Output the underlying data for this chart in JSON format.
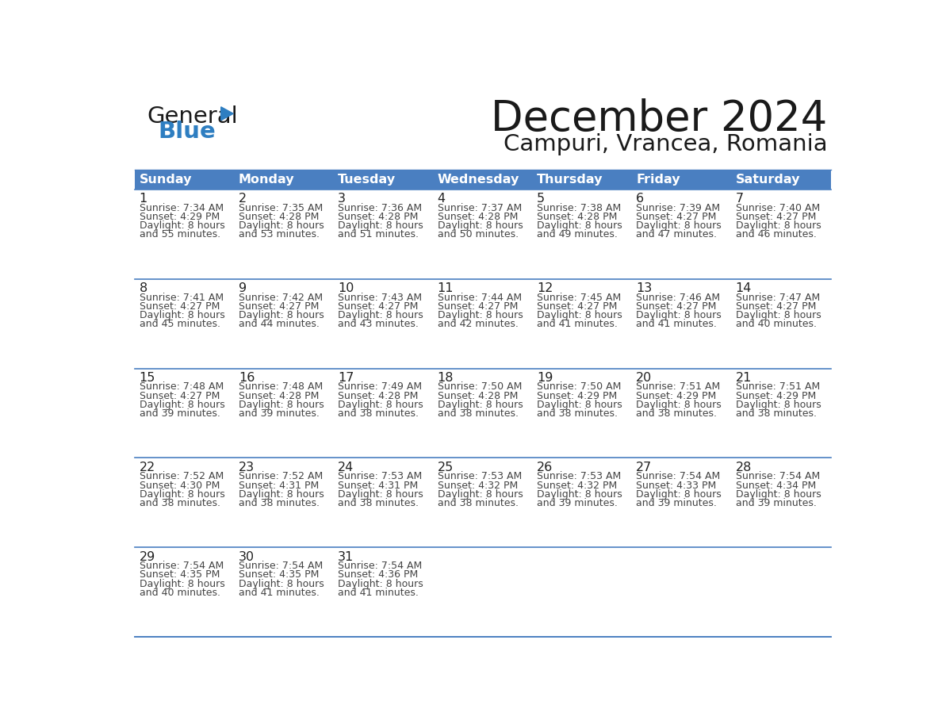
{
  "title": "December 2024",
  "subtitle": "Campuri, Vrancea, Romania",
  "header_bg": "#4a7fc1",
  "header_text": "#ffffff",
  "header_days": [
    "Sunday",
    "Monday",
    "Tuesday",
    "Wednesday",
    "Thursday",
    "Friday",
    "Saturday"
  ],
  "cell_border": "#4a7fc1",
  "day_number_color": "#222222",
  "cell_text_color": "#444444",
  "bg_color": "#ffffff",
  "calendar": [
    [
      {
        "day": "1",
        "sunrise": "7:34 AM",
        "sunset": "4:29 PM",
        "daylight": "8 hours",
        "daylight2": "and 55 minutes."
      },
      {
        "day": "2",
        "sunrise": "7:35 AM",
        "sunset": "4:28 PM",
        "daylight": "8 hours",
        "daylight2": "and 53 minutes."
      },
      {
        "day": "3",
        "sunrise": "7:36 AM",
        "sunset": "4:28 PM",
        "daylight": "8 hours",
        "daylight2": "and 51 minutes."
      },
      {
        "day": "4",
        "sunrise": "7:37 AM",
        "sunset": "4:28 PM",
        "daylight": "8 hours",
        "daylight2": "and 50 minutes."
      },
      {
        "day": "5",
        "sunrise": "7:38 AM",
        "sunset": "4:28 PM",
        "daylight": "8 hours",
        "daylight2": "and 49 minutes."
      },
      {
        "day": "6",
        "sunrise": "7:39 AM",
        "sunset": "4:27 PM",
        "daylight": "8 hours",
        "daylight2": "and 47 minutes."
      },
      {
        "day": "7",
        "sunrise": "7:40 AM",
        "sunset": "4:27 PM",
        "daylight": "8 hours",
        "daylight2": "and 46 minutes."
      }
    ],
    [
      {
        "day": "8",
        "sunrise": "7:41 AM",
        "sunset": "4:27 PM",
        "daylight": "8 hours",
        "daylight2": "and 45 minutes."
      },
      {
        "day": "9",
        "sunrise": "7:42 AM",
        "sunset": "4:27 PM",
        "daylight": "8 hours",
        "daylight2": "and 44 minutes."
      },
      {
        "day": "10",
        "sunrise": "7:43 AM",
        "sunset": "4:27 PM",
        "daylight": "8 hours",
        "daylight2": "and 43 minutes."
      },
      {
        "day": "11",
        "sunrise": "7:44 AM",
        "sunset": "4:27 PM",
        "daylight": "8 hours",
        "daylight2": "and 42 minutes."
      },
      {
        "day": "12",
        "sunrise": "7:45 AM",
        "sunset": "4:27 PM",
        "daylight": "8 hours",
        "daylight2": "and 41 minutes."
      },
      {
        "day": "13",
        "sunrise": "7:46 AM",
        "sunset": "4:27 PM",
        "daylight": "8 hours",
        "daylight2": "and 41 minutes."
      },
      {
        "day": "14",
        "sunrise": "7:47 AM",
        "sunset": "4:27 PM",
        "daylight": "8 hours",
        "daylight2": "and 40 minutes."
      }
    ],
    [
      {
        "day": "15",
        "sunrise": "7:48 AM",
        "sunset": "4:27 PM",
        "daylight": "8 hours",
        "daylight2": "and 39 minutes."
      },
      {
        "day": "16",
        "sunrise": "7:48 AM",
        "sunset": "4:28 PM",
        "daylight": "8 hours",
        "daylight2": "and 39 minutes."
      },
      {
        "day": "17",
        "sunrise": "7:49 AM",
        "sunset": "4:28 PM",
        "daylight": "8 hours",
        "daylight2": "and 38 minutes."
      },
      {
        "day": "18",
        "sunrise": "7:50 AM",
        "sunset": "4:28 PM",
        "daylight": "8 hours",
        "daylight2": "and 38 minutes."
      },
      {
        "day": "19",
        "sunrise": "7:50 AM",
        "sunset": "4:29 PM",
        "daylight": "8 hours",
        "daylight2": "and 38 minutes."
      },
      {
        "day": "20",
        "sunrise": "7:51 AM",
        "sunset": "4:29 PM",
        "daylight": "8 hours",
        "daylight2": "and 38 minutes."
      },
      {
        "day": "21",
        "sunrise": "7:51 AM",
        "sunset": "4:29 PM",
        "daylight": "8 hours",
        "daylight2": "and 38 minutes."
      }
    ],
    [
      {
        "day": "22",
        "sunrise": "7:52 AM",
        "sunset": "4:30 PM",
        "daylight": "8 hours",
        "daylight2": "and 38 minutes."
      },
      {
        "day": "23",
        "sunrise": "7:52 AM",
        "sunset": "4:31 PM",
        "daylight": "8 hours",
        "daylight2": "and 38 minutes."
      },
      {
        "day": "24",
        "sunrise": "7:53 AM",
        "sunset": "4:31 PM",
        "daylight": "8 hours",
        "daylight2": "and 38 minutes."
      },
      {
        "day": "25",
        "sunrise": "7:53 AM",
        "sunset": "4:32 PM",
        "daylight": "8 hours",
        "daylight2": "and 38 minutes."
      },
      {
        "day": "26",
        "sunrise": "7:53 AM",
        "sunset": "4:32 PM",
        "daylight": "8 hours",
        "daylight2": "and 39 minutes."
      },
      {
        "day": "27",
        "sunrise": "7:54 AM",
        "sunset": "4:33 PM",
        "daylight": "8 hours",
        "daylight2": "and 39 minutes."
      },
      {
        "day": "28",
        "sunrise": "7:54 AM",
        "sunset": "4:34 PM",
        "daylight": "8 hours",
        "daylight2": "and 39 minutes."
      }
    ],
    [
      {
        "day": "29",
        "sunrise": "7:54 AM",
        "sunset": "4:35 PM",
        "daylight": "8 hours",
        "daylight2": "and 40 minutes."
      },
      {
        "day": "30",
        "sunrise": "7:54 AM",
        "sunset": "4:35 PM",
        "daylight": "8 hours",
        "daylight2": "and 41 minutes."
      },
      {
        "day": "31",
        "sunrise": "7:54 AM",
        "sunset": "4:36 PM",
        "daylight": "8 hours",
        "daylight2": "and 41 minutes."
      },
      null,
      null,
      null,
      null
    ]
  ],
  "logo_general_color": "#1a1a1a",
  "logo_blue_color": "#2e7ec1",
  "logo_triangle_color": "#2e7ec1",
  "title_color": "#1a1a1a",
  "subtitle_color": "#1a1a1a"
}
